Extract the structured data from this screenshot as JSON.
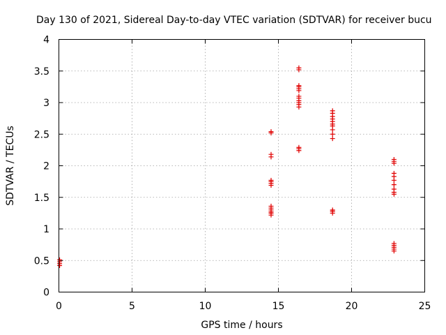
{
  "chart_data": {
    "type": "scatter",
    "title": "Day 130 of 2021, Sidereal Day-to-day VTEC variation (SDTVAR) for receiver bucu",
    "xlabel": "GPS time / hours",
    "ylabel": "SDTVAR / TECUs",
    "xlim": [
      0,
      25
    ],
    "ylim": [
      0,
      4
    ],
    "xticks": [
      0,
      5,
      10,
      15,
      20,
      25
    ],
    "yticks": [
      0,
      0.5,
      1,
      1.5,
      2,
      2.5,
      3,
      3.5,
      4
    ],
    "xtick_labels": [
      "0",
      "5",
      "10",
      "15",
      "20",
      "25"
    ],
    "ytick_labels": [
      "0",
      "0.5",
      "1",
      "1.5",
      "2",
      "2.5",
      "3",
      "3.5",
      "4"
    ],
    "grid": true,
    "marker": "+",
    "color": "#e00000",
    "series": [
      {
        "name": "SDTVAR",
        "points": [
          [
            0.05,
            0.42
          ],
          [
            0.05,
            0.45
          ],
          [
            0.05,
            0.48
          ],
          [
            0.05,
            0.51
          ],
          [
            14.5,
            1.22
          ],
          [
            14.5,
            1.25
          ],
          [
            14.5,
            1.27
          ],
          [
            14.5,
            1.3
          ],
          [
            14.5,
            1.33
          ],
          [
            14.5,
            1.36
          ],
          [
            14.5,
            1.69
          ],
          [
            14.5,
            1.72
          ],
          [
            14.5,
            1.75
          ],
          [
            14.5,
            1.77
          ],
          [
            14.5,
            2.14
          ],
          [
            14.5,
            2.18
          ],
          [
            14.5,
            2.52
          ],
          [
            14.5,
            2.54
          ],
          [
            16.4,
            2.24
          ],
          [
            16.4,
            2.27
          ],
          [
            16.4,
            2.29
          ],
          [
            16.4,
            2.93
          ],
          [
            16.4,
            2.97
          ],
          [
            16.4,
            3.0
          ],
          [
            16.4,
            3.03
          ],
          [
            16.4,
            3.07
          ],
          [
            16.4,
            3.1
          ],
          [
            16.4,
            3.19
          ],
          [
            16.4,
            3.22
          ],
          [
            16.4,
            3.25
          ],
          [
            16.4,
            3.27
          ],
          [
            16.4,
            3.52
          ],
          [
            16.4,
            3.55
          ],
          [
            18.7,
            1.25
          ],
          [
            18.7,
            1.28
          ],
          [
            18.7,
            1.3
          ],
          [
            18.7,
            2.43
          ],
          [
            18.7,
            2.5
          ],
          [
            18.7,
            2.57
          ],
          [
            18.7,
            2.63
          ],
          [
            18.7,
            2.66
          ],
          [
            18.7,
            2.7
          ],
          [
            18.7,
            2.74
          ],
          [
            18.7,
            2.78
          ],
          [
            18.7,
            2.83
          ],
          [
            18.7,
            2.87
          ],
          [
            22.9,
            0.65
          ],
          [
            22.9,
            0.68
          ],
          [
            22.9,
            0.71
          ],
          [
            22.9,
            0.74
          ],
          [
            22.9,
            0.77
          ],
          [
            22.9,
            1.55
          ],
          [
            22.9,
            1.58
          ],
          [
            22.9,
            1.63
          ],
          [
            22.9,
            1.7
          ],
          [
            22.9,
            1.77
          ],
          [
            22.9,
            1.83
          ],
          [
            22.9,
            1.88
          ],
          [
            22.9,
            2.04
          ],
          [
            22.9,
            2.07
          ],
          [
            22.9,
            2.1
          ]
        ]
      }
    ]
  }
}
